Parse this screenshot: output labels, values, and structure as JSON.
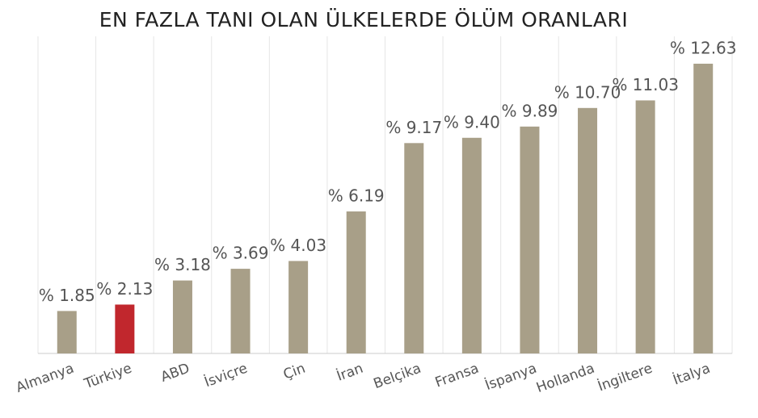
{
  "chart_data": {
    "type": "bar",
    "title": "EN FAZLA TANI OLAN ÜLKELERDE ÖLÜM ORANLARI",
    "categories": [
      "Almanya",
      "Türkiye",
      "ABD",
      "İsviçre",
      "Çin",
      "İran",
      "Belçika",
      "Fransa",
      "İspanya",
      "Hollanda",
      "İngiltere",
      "İtalya"
    ],
    "values": [
      1.85,
      2.13,
      3.18,
      3.69,
      4.03,
      6.19,
      9.17,
      9.4,
      9.89,
      10.7,
      11.03,
      12.63
    ],
    "value_labels": [
      "% 1.85",
      "% 2.13",
      "% 3.18",
      "% 3.69",
      "% 4.03",
      "% 6.19",
      "% 9.17",
      "% 9.40",
      "% 9.89",
      "% 10.70",
      "% 11.03",
      "% 12.63"
    ],
    "colors": [
      "#a89f88",
      "#c1272d",
      "#a89f88",
      "#a89f88",
      "#a89f88",
      "#a89f88",
      "#a89f88",
      "#a89f88",
      "#a89f88",
      "#a89f88",
      "#a89f88",
      "#a89f88"
    ],
    "ylim": [
      0,
      14
    ],
    "grid": true
  }
}
